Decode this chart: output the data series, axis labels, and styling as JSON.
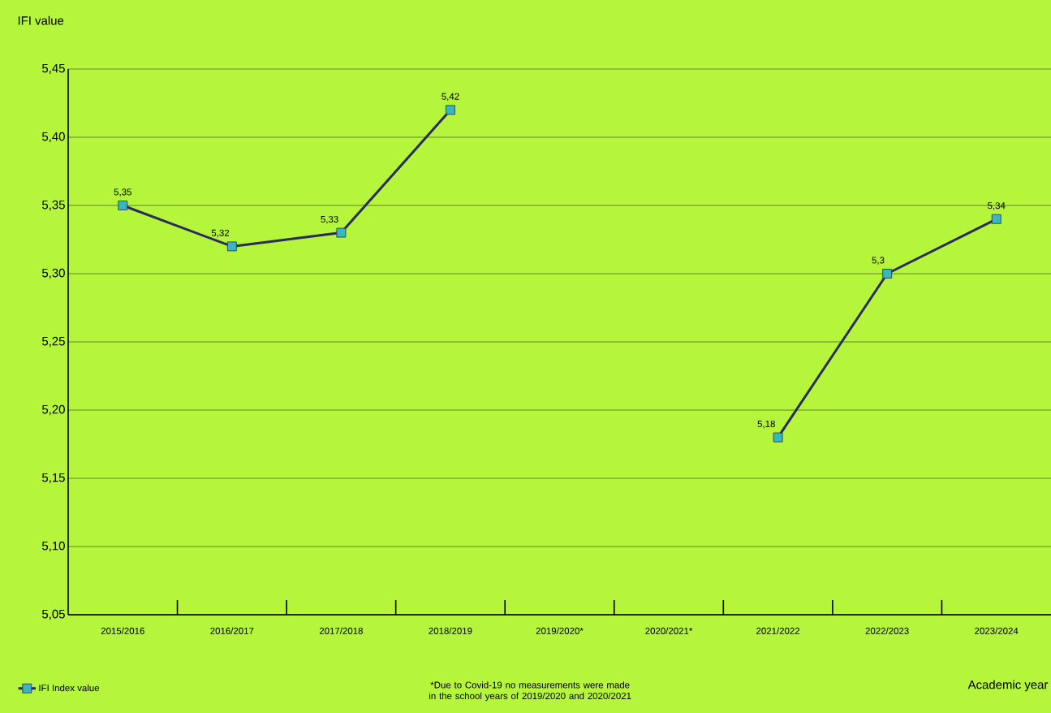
{
  "chart_data": {
    "type": "line",
    "ylabel": "IFI value",
    "xlabel": "Academic year",
    "categories": [
      "2015/2016",
      "2016/2017",
      "2017/2018",
      "2018/2019",
      "2019/2020*",
      "2020/2021*",
      "2021/2022",
      "2022/2023",
      "2023/2024"
    ],
    "series": [
      {
        "name": "IFI Index value",
        "color": "#2b2a5c",
        "values": [
          5.35,
          5.32,
          5.33,
          5.42,
          null,
          null,
          5.18,
          5.3,
          5.34
        ],
        "value_labels": [
          "5,35",
          "5,32",
          "5,33",
          "5,42",
          null,
          null,
          "5,18",
          "5,3",
          "5,34"
        ]
      }
    ],
    "ylim": [
      5.05,
      5.45
    ],
    "yticks": [
      {
        "value": 5.05,
        "label": "5,05"
      },
      {
        "value": 5.1,
        "label": "5,10"
      },
      {
        "value": 5.15,
        "label": "5,15"
      },
      {
        "value": 5.2,
        "label": "5,20"
      },
      {
        "value": 5.25,
        "label": "5,25"
      },
      {
        "value": 5.3,
        "label": "5,30"
      },
      {
        "value": 5.35,
        "label": "5,35"
      },
      {
        "value": 5.4,
        "label": "5,40"
      },
      {
        "value": 5.45,
        "label": "5,45"
      }
    ],
    "grid": "y",
    "legend": "bottom left",
    "marker": "square",
    "line_style": "solid",
    "annotations": [
      "*Due to Covid-19 no measurements were made in the school years of 2019/2020 and 2020/2021"
    ]
  }
}
